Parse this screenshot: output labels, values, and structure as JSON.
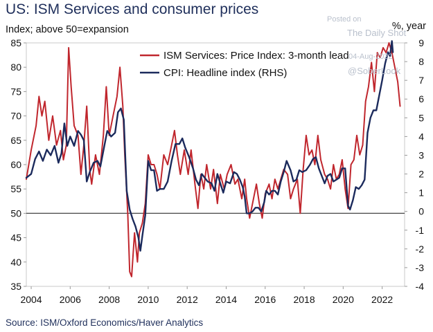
{
  "title": "US: ISM Services and consumer prices",
  "subtitle": "Index; above 50=expansion",
  "rhs_unit": "%, year",
  "source": "Source: ISM/Oxford Economics/Haver Analytics",
  "watermark": {
    "posted": "Posted on",
    "site": "The Daily Shot",
    "date": "04-Aug-2022",
    "handle": "@SoberLook"
  },
  "colors": {
    "ism": "#c0262d",
    "cpi": "#1b2a5c",
    "zero_line": "#444444"
  },
  "chart_data": {
    "type": "line",
    "x_ticks": [
      "2004",
      "2006",
      "2008",
      "2010",
      "2012",
      "2014",
      "2016",
      "2018",
      "2020",
      "2022"
    ],
    "xlim": [
      2003.75,
      2023.15
    ],
    "y_left": {
      "lim": [
        35,
        85
      ],
      "ticks": [
        "35",
        "40",
        "45",
        "50",
        "55",
        "60",
        "65",
        "70",
        "75",
        "80",
        "85"
      ]
    },
    "y_right": {
      "lim": [
        -4,
        9
      ],
      "ticks": [
        "-4",
        "-3",
        "-2",
        "-1",
        "0",
        "1",
        "2",
        "3",
        "4",
        "5",
        "6",
        "7",
        "8",
        "9"
      ]
    },
    "series": [
      {
        "name": "ISM Services: Price Index: 3-month lead",
        "axis": "left",
        "points": [
          [
            2003.75,
            57
          ],
          [
            2004.0,
            63
          ],
          [
            2004.25,
            68
          ],
          [
            2004.4,
            74
          ],
          [
            2004.55,
            70
          ],
          [
            2004.7,
            73
          ],
          [
            2004.9,
            65
          ],
          [
            2005.1,
            70
          ],
          [
            2005.3,
            64
          ],
          [
            2005.5,
            67
          ],
          [
            2005.65,
            61
          ],
          [
            2005.8,
            64
          ],
          [
            2005.92,
            84
          ],
          [
            2006.05,
            76
          ],
          [
            2006.2,
            68
          ],
          [
            2006.4,
            66
          ],
          [
            2006.55,
            58
          ],
          [
            2006.7,
            64
          ],
          [
            2006.85,
            72
          ],
          [
            2007.0,
            59
          ],
          [
            2007.1,
            56
          ],
          [
            2007.3,
            62
          ],
          [
            2007.5,
            58
          ],
          [
            2007.7,
            66
          ],
          [
            2007.85,
            76
          ],
          [
            2008.0,
            66
          ],
          [
            2008.2,
            70
          ],
          [
            2008.4,
            74
          ],
          [
            2008.55,
            80
          ],
          [
            2008.7,
            72
          ],
          [
            2008.8,
            62
          ],
          [
            2008.95,
            50
          ],
          [
            2009.05,
            38
          ],
          [
            2009.15,
            37
          ],
          [
            2009.3,
            46
          ],
          [
            2009.45,
            40
          ],
          [
            2009.55,
            46
          ],
          [
            2009.7,
            48
          ],
          [
            2009.85,
            52
          ],
          [
            2010.0,
            62
          ],
          [
            2010.15,
            60
          ],
          [
            2010.3,
            60
          ],
          [
            2010.45,
            58
          ],
          [
            2010.6,
            55
          ],
          [
            2010.8,
            62
          ],
          [
            2011.0,
            60
          ],
          [
            2011.2,
            64
          ],
          [
            2011.35,
            67
          ],
          [
            2011.5,
            62
          ],
          [
            2011.65,
            58
          ],
          [
            2011.85,
            63
          ],
          [
            2012.05,
            58
          ],
          [
            2012.2,
            63
          ],
          [
            2012.4,
            56
          ],
          [
            2012.55,
            51
          ],
          [
            2012.7,
            58
          ],
          [
            2012.85,
            55
          ],
          [
            2013.0,
            60
          ],
          [
            2013.2,
            55
          ],
          [
            2013.35,
            59
          ],
          [
            2013.55,
            52
          ],
          [
            2013.7,
            58
          ],
          [
            2013.9,
            55
          ],
          [
            2014.05,
            58
          ],
          [
            2014.25,
            60
          ],
          [
            2014.45,
            56
          ],
          [
            2014.6,
            57
          ],
          [
            2014.8,
            53
          ],
          [
            2014.95,
            57
          ],
          [
            2015.05,
            53
          ],
          [
            2015.2,
            49
          ],
          [
            2015.4,
            53
          ],
          [
            2015.55,
            56
          ],
          [
            2015.7,
            52
          ],
          [
            2015.85,
            49
          ],
          [
            2016.0,
            54
          ],
          [
            2016.2,
            56
          ],
          [
            2016.35,
            53
          ],
          [
            2016.5,
            57
          ],
          [
            2016.65,
            55
          ],
          [
            2016.8,
            57
          ],
          [
            2016.95,
            59
          ],
          [
            2017.15,
            58
          ],
          [
            2017.3,
            53
          ],
          [
            2017.45,
            55
          ],
          [
            2017.65,
            57
          ],
          [
            2017.8,
            50
          ],
          [
            2017.95,
            59
          ],
          [
            2018.1,
            66
          ],
          [
            2018.25,
            62
          ],
          [
            2018.4,
            63
          ],
          [
            2018.55,
            60
          ],
          [
            2018.7,
            66
          ],
          [
            2018.85,
            61
          ],
          [
            2019.05,
            58
          ],
          [
            2019.2,
            57
          ],
          [
            2019.35,
            55
          ],
          [
            2019.5,
            60
          ],
          [
            2019.65,
            57
          ],
          [
            2019.8,
            58
          ],
          [
            2019.95,
            61
          ],
          [
            2020.1,
            55
          ],
          [
            2020.25,
            51
          ],
          [
            2020.4,
            60
          ],
          [
            2020.55,
            61
          ],
          [
            2020.7,
            66
          ],
          [
            2020.85,
            62
          ],
          [
            2021.0,
            64
          ],
          [
            2021.15,
            73
          ],
          [
            2021.3,
            76
          ],
          [
            2021.45,
            81
          ],
          [
            2021.6,
            75
          ],
          [
            2021.75,
            83
          ],
          [
            2021.9,
            82
          ],
          [
            2022.05,
            84
          ],
          [
            2022.2,
            83
          ],
          [
            2022.35,
            85
          ],
          [
            2022.5,
            83
          ],
          [
            2022.65,
            80
          ],
          [
            2022.8,
            77
          ],
          [
            2022.92,
            72
          ]
        ]
      },
      {
        "name": "CPI: Headline index (RHS)",
        "axis": "right",
        "points": [
          [
            2003.75,
            1.8
          ],
          [
            2004.0,
            2.0
          ],
          [
            2004.2,
            2.8
          ],
          [
            2004.4,
            3.2
          ],
          [
            2004.6,
            2.7
          ],
          [
            2004.8,
            3.3
          ],
          [
            2005.0,
            3.0
          ],
          [
            2005.2,
            3.5
          ],
          [
            2005.4,
            2.6
          ],
          [
            2005.55,
            3.1
          ],
          [
            2005.7,
            4.7
          ],
          [
            2005.85,
            3.5
          ],
          [
            2006.0,
            4.0
          ],
          [
            2006.2,
            3.5
          ],
          [
            2006.4,
            4.3
          ],
          [
            2006.55,
            4.1
          ],
          [
            2006.7,
            3.8
          ],
          [
            2006.85,
            1.6
          ],
          [
            2007.0,
            2.1
          ],
          [
            2007.2,
            2.6
          ],
          [
            2007.4,
            2.7
          ],
          [
            2007.55,
            2.4
          ],
          [
            2007.75,
            3.5
          ],
          [
            2007.9,
            4.3
          ],
          [
            2008.1,
            4.0
          ],
          [
            2008.3,
            4.2
          ],
          [
            2008.45,
            5.3
          ],
          [
            2008.6,
            5.5
          ],
          [
            2008.75,
            4.9
          ],
          [
            2008.9,
            1.1
          ],
          [
            2009.05,
            0.1
          ],
          [
            2009.2,
            -0.4
          ],
          [
            2009.35,
            -0.8
          ],
          [
            2009.5,
            -1.4
          ],
          [
            2009.6,
            -2.1
          ],
          [
            2009.7,
            -1.3
          ],
          [
            2009.85,
            -0.2
          ],
          [
            2010.0,
            2.7
          ],
          [
            2010.15,
            2.2
          ],
          [
            2010.3,
            2.2
          ],
          [
            2010.45,
            1.1
          ],
          [
            2010.6,
            1.2
          ],
          [
            2010.8,
            1.2
          ],
          [
            2011.0,
            1.6
          ],
          [
            2011.2,
            2.7
          ],
          [
            2011.4,
            3.6
          ],
          [
            2011.6,
            3.6
          ],
          [
            2011.75,
            3.9
          ],
          [
            2011.9,
            3.4
          ],
          [
            2012.1,
            2.9
          ],
          [
            2012.3,
            2.3
          ],
          [
            2012.45,
            1.7
          ],
          [
            2012.6,
            1.4
          ],
          [
            2012.75,
            2.0
          ],
          [
            2012.9,
            1.8
          ],
          [
            2013.05,
            1.6
          ],
          [
            2013.25,
            1.5
          ],
          [
            2013.4,
            1.1
          ],
          [
            2013.55,
            2.0
          ],
          [
            2013.7,
            1.5
          ],
          [
            2013.85,
            1.0
          ],
          [
            2014.0,
            1.6
          ],
          [
            2014.2,
            1.5
          ],
          [
            2014.4,
            2.1
          ],
          [
            2014.55,
            2.0
          ],
          [
            2014.7,
            1.7
          ],
          [
            2014.85,
            1.3
          ],
          [
            2014.95,
            0.8
          ],
          [
            2015.05,
            -0.1
          ],
          [
            2015.2,
            -0.1
          ],
          [
            2015.35,
            0.0
          ],
          [
            2015.5,
            0.2
          ],
          [
            2015.65,
            0.2
          ],
          [
            2015.8,
            0.0
          ],
          [
            2015.95,
            0.5
          ],
          [
            2016.05,
            1.1
          ],
          [
            2016.2,
            0.9
          ],
          [
            2016.35,
            1.1
          ],
          [
            2016.5,
            1.1
          ],
          [
            2016.65,
            0.9
          ],
          [
            2016.8,
            1.6
          ],
          [
            2016.95,
            2.1
          ],
          [
            2017.1,
            2.7
          ],
          [
            2017.3,
            2.2
          ],
          [
            2017.45,
            1.6
          ],
          [
            2017.6,
            1.7
          ],
          [
            2017.75,
            2.2
          ],
          [
            2017.9,
            2.1
          ],
          [
            2018.1,
            2.2
          ],
          [
            2018.3,
            2.5
          ],
          [
            2018.45,
            2.8
          ],
          [
            2018.6,
            2.9
          ],
          [
            2018.75,
            2.3
          ],
          [
            2018.9,
            1.9
          ],
          [
            2019.05,
            1.5
          ],
          [
            2019.2,
            1.9
          ],
          [
            2019.35,
            2.0
          ],
          [
            2019.5,
            1.6
          ],
          [
            2019.65,
            1.7
          ],
          [
            2019.8,
            1.8
          ],
          [
            2019.95,
            2.3
          ],
          [
            2020.1,
            2.3
          ],
          [
            2020.25,
            0.3
          ],
          [
            2020.35,
            0.1
          ],
          [
            2020.5,
            0.6
          ],
          [
            2020.65,
            1.3
          ],
          [
            2020.8,
            1.2
          ],
          [
            2020.95,
            1.4
          ],
          [
            2021.1,
            1.7
          ],
          [
            2021.25,
            4.2
          ],
          [
            2021.4,
            5.0
          ],
          [
            2021.55,
            5.4
          ],
          [
            2021.7,
            5.4
          ],
          [
            2021.85,
            6.2
          ],
          [
            2022.0,
            7.0
          ],
          [
            2022.15,
            7.9
          ],
          [
            2022.3,
            8.5
          ],
          [
            2022.4,
            8.3
          ],
          [
            2022.5,
            9.1
          ],
          [
            2022.55,
            8.5
          ]
        ]
      }
    ]
  }
}
